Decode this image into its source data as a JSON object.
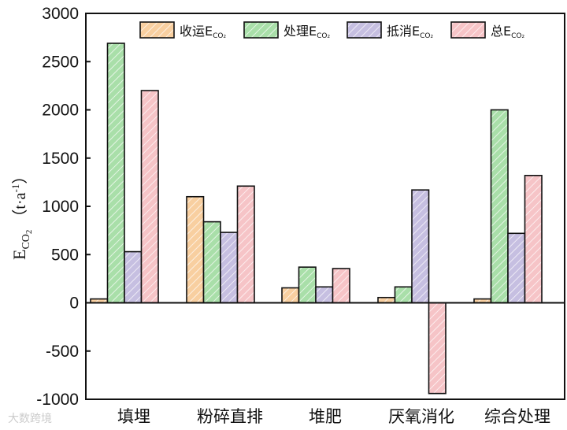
{
  "chart_data": {
    "type": "bar",
    "title": "",
    "xlabel": "",
    "ylabel": "E_CO2 (t·a^-1)",
    "ylabel_main": "E",
    "ylabel_sub": "CO",
    "ylabel_sub2": "2",
    "ylabel_unit": "（t·a",
    "ylabel_sup": "-1",
    "ylabel_close": "）",
    "ylim": [
      -1000,
      3000
    ],
    "yticks": [
      -1000,
      -500,
      0,
      500,
      1000,
      1500,
      2000,
      2500,
      3000
    ],
    "grid": false,
    "legend_position": "top",
    "categories": [
      "填埋",
      "粉碎直排",
      "堆肥",
      "厌氧消化",
      "综合处理"
    ],
    "series": [
      {
        "name": "收运E",
        "sub": "CO₂",
        "color": "#f8cfa0",
        "values": [
          40,
          1100,
          155,
          55,
          40
        ]
      },
      {
        "name": "处理E",
        "sub": "CO₂",
        "color": "#a9dfa9",
        "values": [
          2690,
          840,
          370,
          165,
          2000
        ]
      },
      {
        "name": "抵消E",
        "sub": "CO₂",
        "color": "#c6bfe1",
        "values": [
          530,
          730,
          165,
          1170,
          720
        ]
      },
      {
        "name": "总E",
        "sub": "CO₂",
        "color": "#f6c4c7",
        "values": [
          2200,
          1210,
          355,
          -940,
          1320
        ]
      }
    ]
  },
  "watermark": "大数跨境"
}
